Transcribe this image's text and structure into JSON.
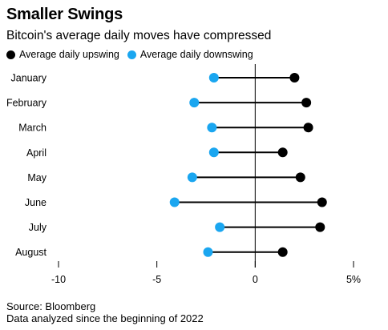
{
  "chart_data": {
    "type": "dumbbell",
    "title": "Smaller Swings",
    "subtitle": "Bitcoin's average daily moves have compressed",
    "categories": [
      "January",
      "February",
      "March",
      "April",
      "May",
      "June",
      "July",
      "August"
    ],
    "series": [
      {
        "name": "Average daily upswing",
        "color": "#000000",
        "values": [
          2.0,
          2.6,
          2.7,
          1.4,
          2.3,
          3.4,
          3.3,
          1.4
        ]
      },
      {
        "name": "Average daily downswing",
        "color": "#1aa6f0",
        "values": [
          -2.1,
          -3.1,
          -2.2,
          -2.1,
          -3.2,
          -4.1,
          -1.8,
          -2.4
        ]
      }
    ],
    "xlim": [
      -10,
      5
    ],
    "xticks": [
      -10,
      -5,
      0,
      5
    ],
    "xtick_labels": [
      "-10",
      "-5",
      "0",
      "5%"
    ],
    "source": "Source: Bloomberg",
    "note": "Data analyzed since the beginning of 2022"
  }
}
